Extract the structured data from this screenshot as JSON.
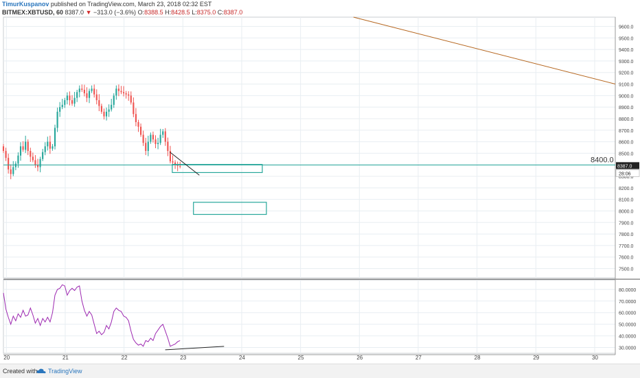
{
  "header": {
    "author": "TimurKuspanov",
    "published": "published on TradingView.com, March 23, 2018 02:32 EST",
    "symbol": "BITMEX:XBTUSD, 60",
    "price": "8387.0",
    "change_arrow": "▼",
    "change": "−313.0 (−3.6%)",
    "o_label": "O:",
    "o": "8388.5",
    "h_label": "H:",
    "h": "8428.5",
    "l_label": "L:",
    "l": "8375.0",
    "c_label": "C:",
    "c": "8387.0"
  },
  "footer": {
    "created": "Created with",
    "brand": "TradingView"
  },
  "colors": {
    "up": "#26a69a",
    "down": "#ef5350",
    "rsi": "#9c27b0",
    "trend": "#b5651d",
    "box": "#26a69a",
    "grid": "#e8eef2"
  },
  "chart_data": [
    {
      "type": "candlestick",
      "title": "",
      "x_ticks": [
        "20",
        "21",
        "22",
        "23",
        "24",
        "25",
        "26",
        "27",
        "28",
        "29",
        "30"
      ],
      "y_ticks": [
        "7500.0",
        "7600.0",
        "7700.0",
        "7800.0",
        "7900.0",
        "8000.0",
        "8100.0",
        "8200.0",
        "8300.0",
        "8400.0",
        "8500.0",
        "8600.0",
        "8700.0",
        "8800.0",
        "8900.0",
        "9000.0",
        "9100.0",
        "9200.0",
        "9300.0",
        "9400.0",
        "9500.0",
        "9600.0"
      ],
      "ylim": [
        7420,
        9680
      ],
      "xlim": [
        19.95,
        30.35
      ],
      "last_price_label": "8387.0",
      "countdown_label": "28:06",
      "level_label": "8400.0",
      "horizontal_line": 8398,
      "trend_line": {
        "x": [
          25.9,
          30.35
        ],
        "y": [
          9680,
          9100
        ]
      },
      "divergence_line": {
        "x": [
          22.78,
          23.28
        ],
        "y": [
          8510,
          8310
        ]
      },
      "zones": [
        {
          "x": [
            22.82,
            24.35
          ],
          "y": [
            8333,
            8403
          ]
        },
        {
          "x": [
            23.18,
            24.42
          ],
          "y": [
            7970,
            8075
          ]
        }
      ],
      "closes": [
        8520,
        8460,
        8360,
        8320,
        8380,
        8410,
        8480,
        8560,
        8530,
        8600,
        8520,
        8470,
        8440,
        8400,
        8380,
        8450,
        8510,
        8560,
        8600,
        8540,
        8560,
        8720,
        8860,
        8900,
        8920,
        8960,
        9000,
        8960,
        8930,
        8980,
        9030,
        9060,
        9050,
        9020,
        8980,
        9040,
        9060,
        9010,
        8960,
        8910,
        8860,
        8820,
        8860,
        8880,
        8920,
        9000,
        9060,
        9040,
        9030,
        9020,
        9010,
        9000,
        8940,
        8840,
        8770,
        8730,
        8660,
        8590,
        8520,
        8600,
        8660,
        8620,
        8580,
        8590,
        8660,
        8690,
        8600,
        8520,
        8430,
        8420,
        8400,
        8390,
        8387
      ],
      "x_start": 19.95,
      "x_step": 0.0417
    },
    {
      "type": "line",
      "title": "",
      "y_ticks": [
        "30.0000",
        "40.0000",
        "50.0000",
        "60.0000",
        "70.0000",
        "80.0000"
      ],
      "ylim": [
        25,
        87
      ],
      "series": [
        {
          "values": [
            77,
            63,
            56,
            50,
            57,
            53,
            59,
            56,
            62,
            57,
            58,
            64,
            58,
            51,
            55,
            49,
            55,
            52,
            56,
            52,
            60,
            75,
            80,
            81,
            84,
            83,
            75,
            79,
            81,
            79,
            82,
            83,
            70,
            62,
            57,
            61,
            58,
            50,
            42,
            44,
            41,
            43,
            49,
            46,
            52,
            61,
            64,
            62,
            61,
            57,
            56,
            53,
            44,
            37,
            34,
            32,
            33,
            31,
            36,
            35,
            38,
            36,
            42,
            45,
            48,
            50,
            44,
            38,
            31,
            32,
            33,
            35,
            36
          ]
        }
      ],
      "support_line": {
        "x": [
          22.7,
          23.7
        ],
        "y": [
          28,
          31
        ]
      }
    }
  ]
}
